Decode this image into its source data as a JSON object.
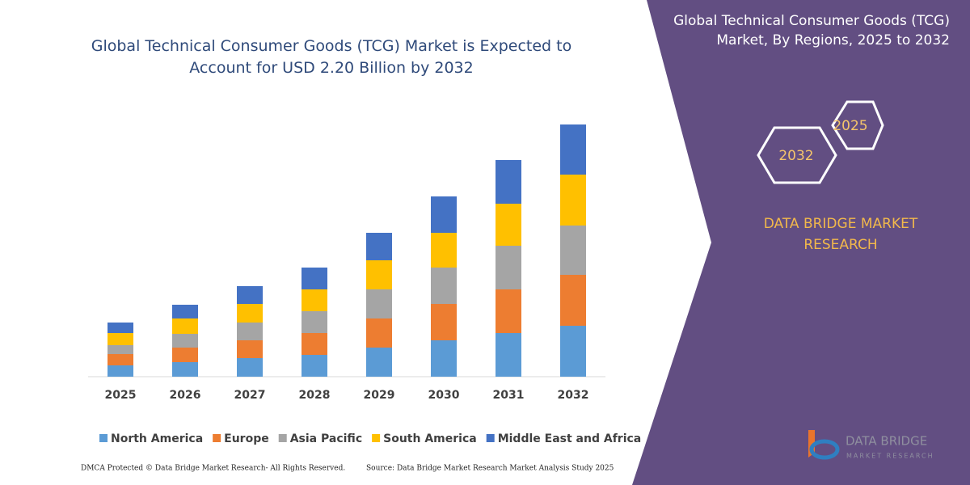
{
  "chart_data": {
    "type": "bar",
    "stacked": true,
    "title": "Global Technical Consumer Goods (TCG) Market is Expected to Account for USD 2.20 Billion by 2032",
    "categories": [
      "2025",
      "2026",
      "2027",
      "2028",
      "2029",
      "2030",
      "2031",
      "2032"
    ],
    "series": [
      {
        "name": "North America",
        "color": "#5b9bd5",
        "values": [
          14,
          18,
          23,
          27,
          36,
          45,
          54,
          63
        ]
      },
      {
        "name": "Europe",
        "color": "#ed7d31",
        "values": [
          14,
          18,
          22,
          27,
          36,
          45,
          54,
          63
        ]
      },
      {
        "name": "Asia Pacific",
        "color": "#a5a5a5",
        "values": [
          11,
          17,
          22,
          27,
          36,
          45,
          54,
          61
        ]
      },
      {
        "name": "South America",
        "color": "#ffc000",
        "values": [
          15,
          19,
          23,
          27,
          36,
          43,
          52,
          63
        ]
      },
      {
        "name": "Middle East and Africa",
        "color": "#4472c4",
        "values": [
          13,
          17,
          22,
          27,
          34,
          45,
          54,
          62
        ]
      }
    ],
    "ylim": [
      0,
      320
    ]
  },
  "side_panel": {
    "title": "Global Technical Consumer Goods (TCG) Market, By Regions, 2025 to 2032",
    "hexagons": [
      "2025",
      "2032"
    ],
    "brand": "DATA BRIDGE MARKET RESEARCH",
    "logo_name": "DATA BRIDGE",
    "logo_tagline": "MARKET RESEARCH"
  },
  "footer": {
    "notice": "DMCA Protected © Data Bridge Market Research- All Rights Reserved.",
    "source": "Source: Data Bridge Market Research Market Analysis Study 2025"
  }
}
